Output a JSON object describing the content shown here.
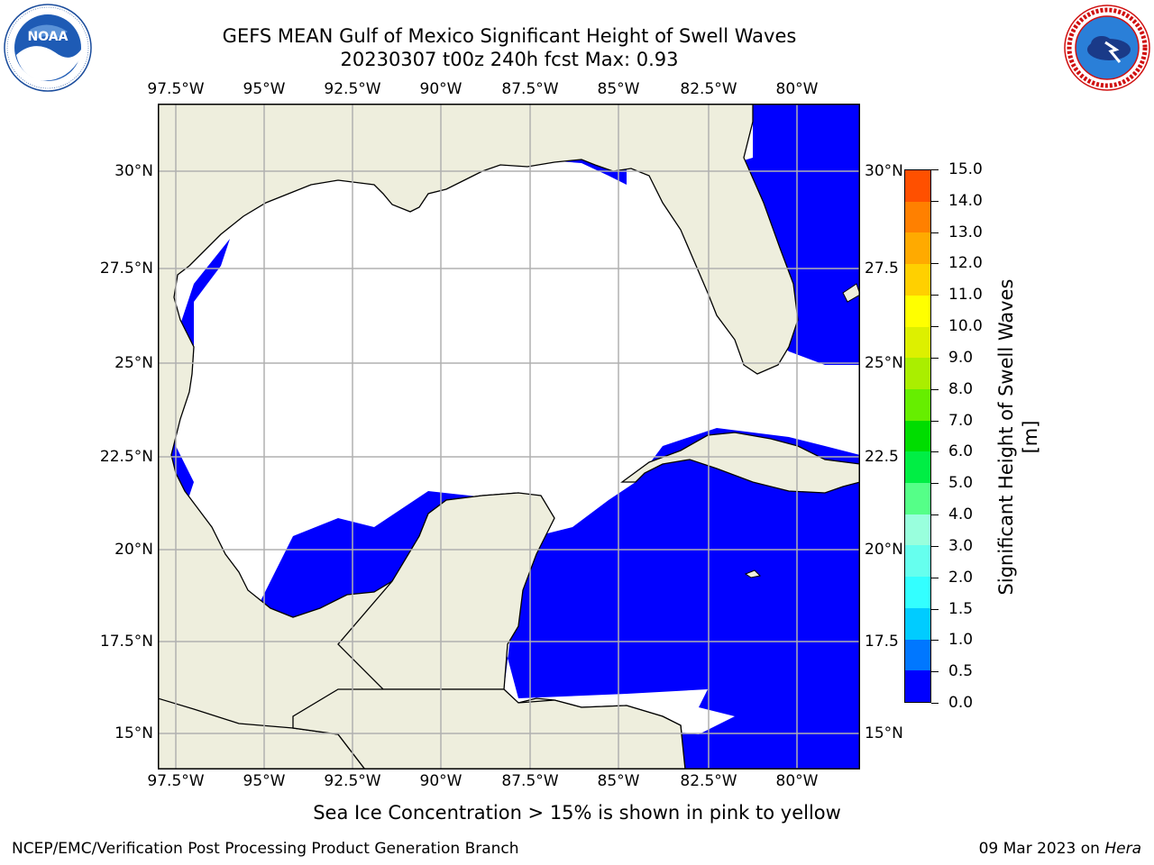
{
  "title_line1": "GEFS MEAN Gulf of Mexico Significant Height of Swell Waves",
  "title_line2": "20230307 t00z 240h fcst   Max: 0.93",
  "lon_labels": [
    "97.5°W",
    "95°W",
    "92.5°W",
    "90°W",
    "87.5°W",
    "85°W",
    "82.5°W",
    "80°W"
  ],
  "lat_labels_left": [
    "30°N",
    "27.5°N",
    "25°N",
    "22.5°N",
    "20°N",
    "17.5°N",
    "15°N"
  ],
  "lat_labels_right": [
    "30°N",
    "27.5",
    "25°N",
    "22.5",
    "20°N",
    "17.5",
    "15°N"
  ],
  "colorbar": {
    "title": "Significant Height of Swell Waves [m]",
    "ticks": [
      "0.0",
      "0.5",
      "1.0",
      "1.5",
      "2.0",
      "3.0",
      "4.0",
      "5.0",
      "6.0",
      "7.0",
      "8.0",
      "9.0",
      "10.0",
      "11.0",
      "12.0",
      "13.0",
      "14.0",
      "15.0"
    ],
    "colors": [
      "#0000ff",
      "#0077ff",
      "#00ccff",
      "#33ffff",
      "#66ffee",
      "#99ffdd",
      "#55ff88",
      "#00ee44",
      "#00dd00",
      "#66ee00",
      "#aaee00",
      "#ddf000",
      "#ffff00",
      "#ffd000",
      "#ffaa00",
      "#ff8000",
      "#ff5000",
      "#ff2000",
      "#ff0000"
    ]
  },
  "map": {
    "ocean_color": "#0000ff",
    "land_color": "#eeeedd",
    "south_pacific_color": "#0077ff",
    "grid_color": "#b0b0b0"
  },
  "note": "Sea Ice Concentration > 15% is shown in pink to yellow",
  "credit": "NCEP/EMC/Verification Post Processing Product Generation Branch",
  "date_text": "09 Mar 2023 on ",
  "date_host": "Hera",
  "logos": {
    "left": {
      "icon": "noaa-logo",
      "text": "NOAA",
      "ring_text": "NATIONAL OCEANIC AND ATMOSPHERIC ADMINISTRATION · U.S. DEPARTMENT OF COMMERCE"
    },
    "right": {
      "icon": "nws-logo",
      "ring_text": "NATIONAL WEATHER SERVICE"
    }
  }
}
